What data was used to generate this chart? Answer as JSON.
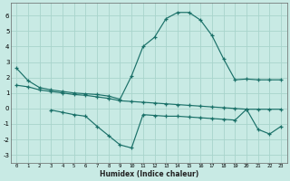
{
  "xlabel": "Humidex (Indice chaleur)",
  "bg_color": "#c8eae4",
  "grid_color": "#a8d4cc",
  "line_color": "#1a7068",
  "xlim": [
    -0.5,
    23.5
  ],
  "ylim": [
    -3.5,
    6.8
  ],
  "yticks": [
    -3,
    -2,
    -1,
    0,
    1,
    2,
    3,
    4,
    5,
    6
  ],
  "xticks": [
    0,
    1,
    2,
    3,
    4,
    5,
    6,
    7,
    8,
    9,
    10,
    11,
    12,
    13,
    14,
    15,
    16,
    17,
    18,
    19,
    20,
    21,
    22,
    23
  ],
  "line1_x": [
    0,
    1,
    2,
    3,
    4,
    5,
    6,
    7,
    8,
    9,
    10,
    11,
    12,
    13,
    14,
    15,
    16,
    17,
    18,
    19,
    20,
    21,
    22,
    23
  ],
  "line1_y": [
    2.6,
    1.8,
    1.35,
    1.2,
    1.1,
    1.0,
    0.95,
    0.9,
    0.8,
    0.6,
    2.1,
    4.0,
    4.6,
    5.8,
    6.2,
    6.2,
    5.7,
    4.7,
    3.2,
    1.85,
    1.9,
    1.85,
    1.85,
    1.85
  ],
  "line2_x": [
    0,
    1,
    2,
    3,
    4,
    5,
    6,
    7,
    8,
    9,
    10,
    11,
    12,
    13,
    14,
    15,
    16,
    17,
    18,
    19,
    20,
    21,
    22,
    23
  ],
  "line2_y": [
    1.5,
    1.4,
    1.2,
    1.1,
    1.0,
    0.9,
    0.85,
    0.75,
    0.65,
    0.5,
    0.45,
    0.4,
    0.35,
    0.3,
    0.25,
    0.2,
    0.15,
    0.1,
    0.05,
    0.0,
    -0.05,
    -0.05,
    -0.05,
    -0.05
  ],
  "line3_x": [
    3,
    4,
    5,
    6,
    7,
    8,
    9,
    10,
    11,
    12,
    13,
    14,
    15,
    16,
    17,
    18,
    19,
    20,
    21,
    22,
    23
  ],
  "line3_y": [
    -0.1,
    -0.25,
    -0.4,
    -0.5,
    -1.15,
    -1.75,
    -2.35,
    -2.55,
    -0.4,
    -0.45,
    -0.5,
    -0.5,
    -0.55,
    -0.6,
    -0.65,
    -0.7,
    -0.75,
    -0.05,
    -1.35,
    -1.65,
    -1.15
  ]
}
